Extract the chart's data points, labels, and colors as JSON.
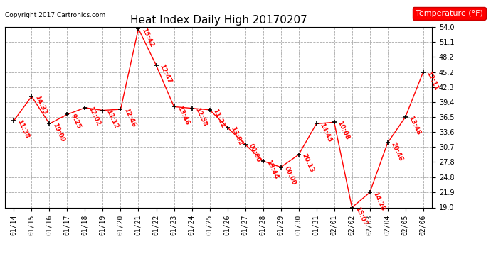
{
  "title": "Heat Index Daily High 20170207",
  "copyright": "Copyright 2017 Cartronics.com",
  "legend_label": "Temperature (°F)",
  "line_color": "#FF0000",
  "background_color": "#FFFFFF",
  "grid_color": "#AAAAAA",
  "ylim": [
    19.0,
    54.0
  ],
  "yticks": [
    19.0,
    21.9,
    24.8,
    27.8,
    30.7,
    33.6,
    36.5,
    39.4,
    42.3,
    45.2,
    48.2,
    51.1,
    54.0
  ],
  "dates": [
    "01/14",
    "01/15",
    "01/16",
    "01/17",
    "01/18",
    "01/19",
    "01/20",
    "01/21",
    "01/22",
    "01/23",
    "01/24",
    "01/25",
    "01/26",
    "01/27",
    "01/28",
    "01/29",
    "01/30",
    "01/31",
    "02/01",
    "02/02",
    "02/03",
    "02/04",
    "02/05",
    "02/06"
  ],
  "values": [
    35.8,
    40.5,
    35.2,
    37.0,
    38.3,
    37.8,
    38.0,
    53.6,
    46.5,
    38.5,
    38.2,
    37.9,
    34.5,
    31.2,
    28.0,
    26.8,
    29.2,
    35.2,
    35.5,
    19.0,
    21.9,
    31.5,
    36.5,
    45.2
  ],
  "labels": [
    "11:38",
    "14:33",
    "19:09",
    "9:25",
    "12:02",
    "13:12",
    "12:46",
    "15:42",
    "12:47",
    "13:46",
    "12:58",
    "11:22",
    "13:02",
    "00:00",
    "13:44",
    "00:00",
    "20:13",
    "14:45",
    "10:08",
    "15:07",
    "14:28",
    "20:46",
    "13:48",
    "12:11"
  ],
  "title_fontsize": 11,
  "tick_fontsize": 7,
  "label_fontsize": 6.5,
  "copyright_fontsize": 6.5,
  "legend_fontsize": 8
}
